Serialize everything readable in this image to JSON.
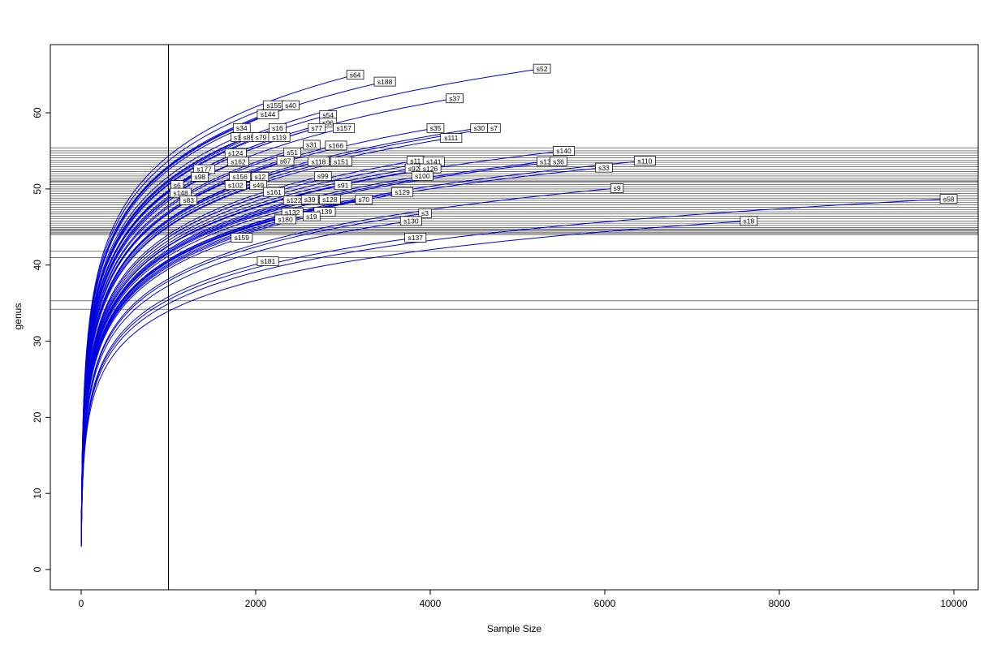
{
  "axes": {
    "xlabel": "Sample Size",
    "ylabel": "genus"
  },
  "chart_data": {
    "type": "line",
    "title": "",
    "xlabel": "Sample Size",
    "ylabel": "genus",
    "xlim": [
      -353.5,
      10279
    ],
    "ylim": [
      -2.66,
      68.96
    ],
    "x_tick_values": [
      0,
      2000,
      4000,
      6000,
      8000,
      10000
    ],
    "y_tick_values": [
      0,
      10,
      20,
      30,
      40,
      50,
      60
    ],
    "grid": false,
    "legend": "none",
    "curve_color": "#0000dd",
    "hline_color": "#2a2a2a",
    "vline_color": "#000000",
    "vline_x": 1000,
    "hlines_y": [
      55.4,
      55.0,
      54.7,
      54.4,
      54.1,
      53.8,
      53.5,
      53.2,
      52.9,
      52.6,
      52.3,
      52.0,
      51.7,
      51.4,
      51.15,
      51.0,
      50.85,
      50.6,
      50.3,
      50.0,
      49.7,
      49.4,
      49.1,
      48.8,
      48.5,
      48.2,
      47.9,
      47.6,
      47.3,
      47.0,
      46.7,
      46.4,
      46.1,
      45.8,
      45.5,
      45.2,
      44.95,
      44.75,
      44.6,
      44.45,
      44.3,
      44.15,
      44.0,
      41.8,
      41.0,
      35.3,
      34.2
    ],
    "series": [
      {
        "name": "s52",
        "x_end": 5280,
        "y_end": 65.8
      },
      {
        "name": "s64",
        "x_end": 3140,
        "y_end": 65.0
      },
      {
        "name": "s188",
        "x_end": 3480,
        "y_end": 64.1
      },
      {
        "name": "s37",
        "x_end": 4280,
        "y_end": 61.9
      },
      {
        "name": "s155",
        "x_end": 2210,
        "y_end": 61.0
      },
      {
        "name": "s40",
        "x_end": 2400,
        "y_end": 61.0
      },
      {
        "name": "s144",
        "x_end": 2140,
        "y_end": 59.8
      },
      {
        "name": "s54",
        "x_end": 2830,
        "y_end": 59.7
      },
      {
        "name": "s96",
        "x_end": 2830,
        "y_end": 58.7
      },
      {
        "name": "s34",
        "x_end": 1840,
        "y_end": 58.0
      },
      {
        "name": "s16",
        "x_end": 2250,
        "y_end": 58.0
      },
      {
        "name": "s77",
        "x_end": 2700,
        "y_end": 58.0
      },
      {
        "name": "s157",
        "x_end": 3010,
        "y_end": 58.0
      },
      {
        "name": "s35",
        "x_end": 4060,
        "y_end": 58.0
      },
      {
        "name": "s30",
        "x_end": 4560,
        "y_end": 58.0
      },
      {
        "name": "s7",
        "x_end": 4730,
        "y_end": 58.0
      },
      {
        "name": "s1",
        "x_end": 1790,
        "y_end": 56.8
      },
      {
        "name": "s85",
        "x_end": 1920,
        "y_end": 56.8
      },
      {
        "name": "s79",
        "x_end": 2060,
        "y_end": 56.8
      },
      {
        "name": "s119",
        "x_end": 2270,
        "y_end": 56.8
      },
      {
        "name": "s111",
        "x_end": 4240,
        "y_end": 56.7
      },
      {
        "name": "s31",
        "x_end": 2640,
        "y_end": 55.8
      },
      {
        "name": "s166",
        "x_end": 2920,
        "y_end": 55.7
      },
      {
        "name": "s124",
        "x_end": 1770,
        "y_end": 54.7
      },
      {
        "name": "s51",
        "x_end": 2420,
        "y_end": 54.8
      },
      {
        "name": "s140",
        "x_end": 5530,
        "y_end": 55.0
      },
      {
        "name": "s162",
        "x_end": 1800,
        "y_end": 53.6
      },
      {
        "name": "s67",
        "x_end": 2340,
        "y_end": 53.7
      },
      {
        "name": "s118",
        "x_end": 2720,
        "y_end": 53.6
      },
      {
        "name": "s151",
        "x_end": 2980,
        "y_end": 53.6
      },
      {
        "name": "s11",
        "x_end": 3830,
        "y_end": 53.7
      },
      {
        "name": "s141",
        "x_end": 4040,
        "y_end": 53.6
      },
      {
        "name": "s13",
        "x_end": 5320,
        "y_end": 53.6
      },
      {
        "name": "s36",
        "x_end": 5470,
        "y_end": 53.6
      },
      {
        "name": "s110",
        "x_end": 6460,
        "y_end": 53.7
      },
      {
        "name": "s92",
        "x_end": 3810,
        "y_end": 52.7
      },
      {
        "name": "s126",
        "x_end": 4000,
        "y_end": 52.7
      },
      {
        "name": "s33",
        "x_end": 5990,
        "y_end": 52.8
      },
      {
        "name": "s177",
        "x_end": 1410,
        "y_end": 52.6
      },
      {
        "name": "s98",
        "x_end": 1360,
        "y_end": 51.6
      },
      {
        "name": "s156",
        "x_end": 1820,
        "y_end": 51.6
      },
      {
        "name": "s12",
        "x_end": 2050,
        "y_end": 51.6
      },
      {
        "name": "s99",
        "x_end": 2770,
        "y_end": 51.7
      },
      {
        "name": "s100",
        "x_end": 3910,
        "y_end": 51.7
      },
      {
        "name": "s6",
        "x_end": 1100,
        "y_end": 50.5
      },
      {
        "name": "s102",
        "x_end": 1770,
        "y_end": 50.5
      },
      {
        "name": "s49",
        "x_end": 2030,
        "y_end": 50.5
      },
      {
        "name": "s91",
        "x_end": 3000,
        "y_end": 50.5
      },
      {
        "name": "s161",
        "x_end": 2210,
        "y_end": 49.6
      },
      {
        "name": "s129",
        "x_end": 3680,
        "y_end": 49.6
      },
      {
        "name": "s9",
        "x_end": 6140,
        "y_end": 50.1
      },
      {
        "name": "s148",
        "x_end": 1140,
        "y_end": 49.5
      },
      {
        "name": "s83",
        "x_end": 1230,
        "y_end": 48.5
      },
      {
        "name": "s122",
        "x_end": 2440,
        "y_end": 48.5
      },
      {
        "name": "s39",
        "x_end": 2620,
        "y_end": 48.6
      },
      {
        "name": "s128",
        "x_end": 2850,
        "y_end": 48.6
      },
      {
        "name": "s70",
        "x_end": 3240,
        "y_end": 48.6
      },
      {
        "name": "s58",
        "x_end": 9940,
        "y_end": 48.7
      },
      {
        "name": "s132",
        "x_end": 2420,
        "y_end": 46.9
      },
      {
        "name": "s139",
        "x_end": 2790,
        "y_end": 47.0
      },
      {
        "name": "s19",
        "x_end": 2640,
        "y_end": 46.4
      },
      {
        "name": "s3",
        "x_end": 3940,
        "y_end": 46.8
      },
      {
        "name": "s180",
        "x_end": 2340,
        "y_end": 46.0
      },
      {
        "name": "s130",
        "x_end": 3780,
        "y_end": 45.8
      },
      {
        "name": "s18",
        "x_end": 7650,
        "y_end": 45.8
      },
      {
        "name": "s159",
        "x_end": 1840,
        "y_end": 43.6
      },
      {
        "name": "s137",
        "x_end": 3830,
        "y_end": 43.6
      },
      {
        "name": "s181",
        "x_end": 2140,
        "y_end": 40.5
      }
    ]
  }
}
